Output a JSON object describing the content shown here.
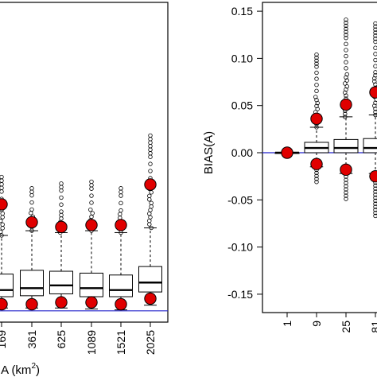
{
  "chart_data": [
    {
      "type": "boxplot",
      "xlabel": "A (km",
      "xlabel_superscript": "2",
      "xlabel_suffix": ")",
      "ylabel": "",
      "categories": [
        "169",
        "361",
        "625",
        "1089",
        "1521",
        "2025"
      ],
      "boxes": [
        {
          "median": -0.058,
          "q1": -0.065,
          "q3": -0.041,
          "whisker_low": -0.077,
          "whisker_high": 0.0
        },
        {
          "median": -0.056,
          "q1": -0.064,
          "q3": -0.037,
          "whisker_low": -0.077,
          "whisker_high": 0.005
        },
        {
          "median": -0.053,
          "q1": -0.062,
          "q3": -0.038,
          "whisker_low": -0.077,
          "whisker_high": 0.003
        },
        {
          "median": -0.056,
          "q1": -0.065,
          "q3": -0.04,
          "whisker_low": -0.078,
          "whisker_high": 0.005
        },
        {
          "median": -0.058,
          "q1": -0.065,
          "q3": -0.042,
          "whisker_low": -0.079,
          "whisker_high": 0.003
        },
        {
          "median": -0.05,
          "q1": -0.06,
          "q3": -0.033,
          "whisker_low": -0.074,
          "whisker_high": 0.008
        }
      ],
      "outlier_top": [
        0.062,
        0.05,
        0.055,
        0.057,
        0.05,
        0.106
      ],
      "mean_upper": [
        0.033,
        0.014,
        0.009,
        0.011,
        0.011,
        0.054
      ],
      "mean_lower": [
        -0.073,
        -0.073,
        -0.071,
        -0.071,
        -0.073,
        -0.067
      ],
      "reference_line": -0.08,
      "grid": false,
      "colors": {
        "marker": "#e00000",
        "reference": "#2222cc",
        "box": "#000000"
      }
    },
    {
      "type": "boxplot",
      "xlabel": "",
      "ylabel": "BIAS(A)",
      "categories": [
        "1",
        "9",
        "25",
        "81"
      ],
      "yticks": [
        "0.15",
        "0.10",
        "0.05",
        "0.00",
        "-0.05",
        "-0.10",
        "-0.15"
      ],
      "ylim": [
        -0.17,
        0.16
      ],
      "boxes": [
        {
          "median": 0.0,
          "q1": 0.0,
          "q3": 0.0,
          "whisker_low": 0.0,
          "whisker_high": 0.0
        },
        {
          "median": 0.005,
          "q1": 0.0,
          "q3": 0.011,
          "whisker_low": -0.015,
          "whisker_high": 0.027
        },
        {
          "median": 0.005,
          "q1": 0.0,
          "q3": 0.014,
          "whisker_low": -0.022,
          "whisker_high": 0.038
        },
        {
          "median": 0.005,
          "q1": 0.0,
          "q3": 0.015,
          "whisker_low": -0.022,
          "whisker_high": 0.04
        }
      ],
      "outlier_top": [
        0.0,
        0.104,
        0.141,
        0.137
      ],
      "outlier_bottom": [
        0.0,
        -0.031,
        -0.049,
        -0.067
      ],
      "mean_upper": [
        0.0,
        0.036,
        0.051,
        0.064
      ],
      "mean_lower": [
        0.0,
        -0.012,
        -0.018,
        -0.025
      ],
      "reference_line": 0.0,
      "grid": false,
      "colors": {
        "marker": "#e00000",
        "reference": "#2222cc",
        "box": "#000000"
      }
    }
  ]
}
